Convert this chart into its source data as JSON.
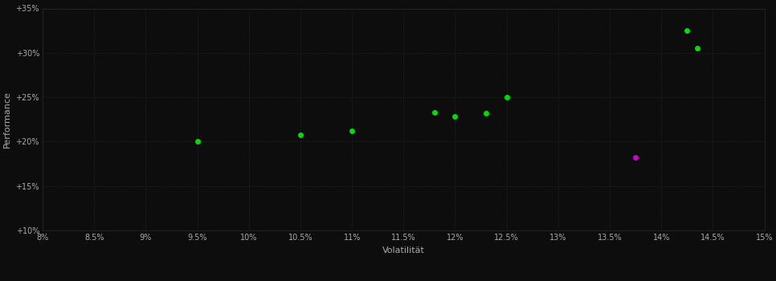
{
  "green_points": [
    [
      9.5,
      20.0
    ],
    [
      10.5,
      20.8
    ],
    [
      11.0,
      21.2
    ],
    [
      11.8,
      23.3
    ],
    [
      12.0,
      22.8
    ],
    [
      12.3,
      23.2
    ],
    [
      12.5,
      25.0
    ],
    [
      14.25,
      32.5
    ],
    [
      14.35,
      30.5
    ]
  ],
  "magenta_points": [
    [
      13.75,
      18.2
    ]
  ],
  "green_color": "#00dd00",
  "magenta_color": "#cc00cc",
  "background_color": "#0d0d0d",
  "grid_color": "#2a2a2a",
  "text_color": "#aaaaaa",
  "xlabel": "Volatilität",
  "ylabel": "Performance",
  "xlim": [
    8.0,
    15.0
  ],
  "ylim": [
    10.0,
    35.0
  ],
  "xtick_values": [
    8.0,
    8.5,
    9.0,
    9.5,
    10.0,
    10.5,
    11.0,
    11.5,
    12.0,
    12.5,
    13.0,
    13.5,
    14.0,
    14.5,
    15.0
  ],
  "ytick_values": [
    10.0,
    15.0,
    20.0,
    25.0,
    30.0,
    35.0
  ],
  "marker_size": 25,
  "label_fontsize": 8,
  "tick_fontsize": 7
}
